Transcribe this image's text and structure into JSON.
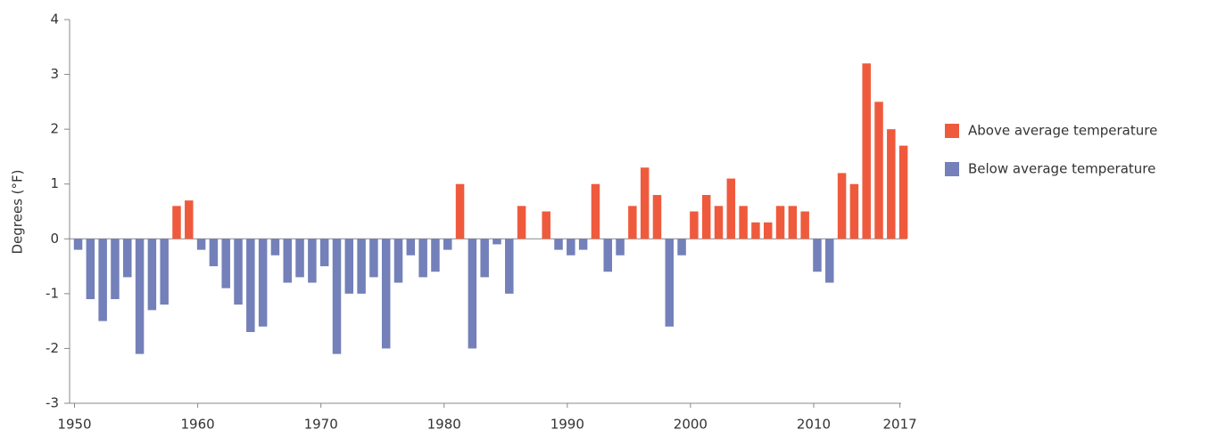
{
  "chart_data": {
    "type": "bar",
    "y_label": "Degrees (°F)",
    "x": [
      1950,
      1951,
      1952,
      1953,
      1954,
      1955,
      1956,
      1957,
      1958,
      1959,
      1960,
      1961,
      1962,
      1963,
      1964,
      1965,
      1966,
      1967,
      1968,
      1969,
      1970,
      1971,
      1972,
      1973,
      1974,
      1975,
      1976,
      1977,
      1978,
      1979,
      1980,
      1981,
      1982,
      1983,
      1984,
      1985,
      1986,
      1987,
      1988,
      1989,
      1990,
      1991,
      1992,
      1993,
      1994,
      1995,
      1996,
      1997,
      1998,
      1999,
      2000,
      2001,
      2002,
      2003,
      2004,
      2005,
      2006,
      2007,
      2008,
      2009,
      2010,
      2011,
      2012,
      2013,
      2014,
      2015,
      2016,
      2017
    ],
    "series": [
      {
        "name": "Above average temperature",
        "color": "#ef5a3d",
        "values": [
          null,
          null,
          null,
          null,
          null,
          null,
          null,
          null,
          0.6,
          0.7,
          null,
          null,
          null,
          null,
          null,
          null,
          null,
          null,
          null,
          null,
          null,
          null,
          null,
          null,
          null,
          null,
          null,
          null,
          null,
          null,
          null,
          1.0,
          null,
          null,
          null,
          null,
          0.6,
          null,
          0.5,
          null,
          null,
          null,
          1.0,
          null,
          null,
          0.6,
          1.3,
          0.8,
          null,
          null,
          0.5,
          0.8,
          0.6,
          1.1,
          0.6,
          0.3,
          0.3,
          0.6,
          0.6,
          0.5,
          null,
          null,
          1.2,
          1.0,
          3.2,
          2.5,
          2.0,
          1.7
        ]
      },
      {
        "name": "Below average temperature",
        "color": "#7380b9",
        "values": [
          -0.2,
          -1.1,
          -1.5,
          -1.1,
          -0.7,
          -2.1,
          -1.3,
          -1.2,
          null,
          null,
          -0.2,
          -0.5,
          -0.9,
          -1.2,
          -1.7,
          -1.6,
          -0.3,
          -0.8,
          -0.7,
          -0.8,
          -0.5,
          -2.1,
          -1.0,
          -1.0,
          -0.7,
          -2.0,
          -0.8,
          -0.3,
          -0.7,
          -0.6,
          -0.2,
          null,
          -2.0,
          -0.7,
          -0.1,
          -1.0,
          null,
          null,
          null,
          -0.2,
          -0.3,
          -0.2,
          null,
          -0.6,
          -0.3,
          null,
          null,
          null,
          -1.6,
          -0.3,
          null,
          null,
          null,
          null,
          null,
          null,
          null,
          null,
          null,
          null,
          -0.6,
          -0.8,
          null,
          null,
          null,
          null,
          null,
          null
        ]
      }
    ],
    "xlim": [
      1949.6,
      2017.1
    ],
    "xticks": [
      1950,
      1960,
      1970,
      1980,
      1990,
      2000,
      2010,
      2017
    ],
    "ylim": [
      -3,
      4
    ],
    "yticks": [
      -3,
      -2,
      -1,
      0,
      1,
      2,
      3,
      4
    ],
    "grid": false,
    "legend": "right"
  }
}
